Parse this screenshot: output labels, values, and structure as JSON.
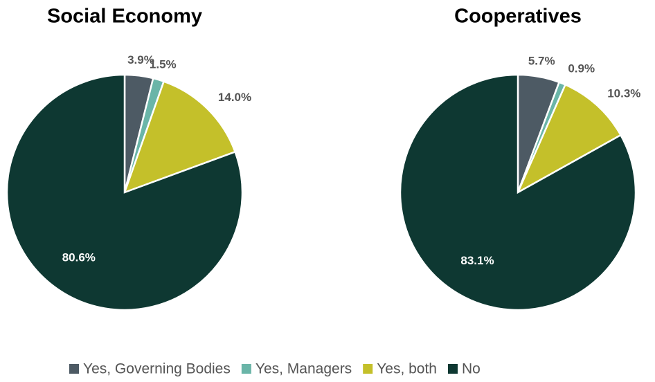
{
  "chart_data": [
    {
      "type": "pie",
      "title": "Social Economy",
      "categories": [
        "Yes, Governing Bodies",
        "Yes, Managers",
        "Yes, both",
        "No"
      ],
      "values": [
        3.9,
        1.5,
        14.0,
        80.6
      ],
      "value_labels": [
        "3.9%",
        "1.5%",
        "14.0%",
        "80.6%"
      ],
      "colors": [
        "#4d5a64",
        "#6ab5a8",
        "#c4c02a",
        "#0e3832"
      ]
    },
    {
      "type": "pie",
      "title": "Cooperatives",
      "categories": [
        "Yes, Governing Bodies",
        "Yes, Managers",
        "Yes, both",
        "No"
      ],
      "values": [
        5.7,
        0.9,
        10.3,
        83.1
      ],
      "value_labels": [
        "5.7%",
        "0.9%",
        "10.3%",
        "83.1%"
      ],
      "colors": [
        "#4d5a64",
        "#6ab5a8",
        "#c4c02a",
        "#0e3832"
      ]
    }
  ]
}
